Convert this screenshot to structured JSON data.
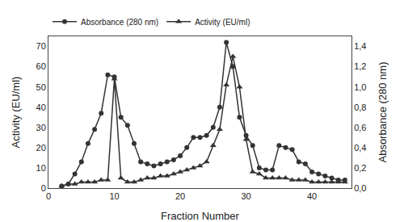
{
  "chart_data": {
    "type": "line",
    "xlabel": "Fraction Number",
    "ylabel": "Activity (EU/ml)",
    "y2label": "Absorbance (280 nm)",
    "x": [
      2,
      3,
      4,
      5,
      6,
      7,
      8,
      9,
      10,
      11,
      12,
      13,
      14,
      15,
      16,
      17,
      18,
      19,
      20,
      21,
      22,
      23,
      24,
      25,
      26,
      27,
      28,
      29,
      30,
      31,
      32,
      33,
      34,
      35,
      36,
      37,
      38,
      39,
      40,
      41,
      42,
      43,
      44,
      45
    ],
    "series": [
      {
        "name": "Activity (EU/ml)",
        "color": "#333333",
        "marker": "triangle",
        "line_style": "solid",
        "values": [
          1,
          2,
          2,
          3,
          3,
          3,
          4,
          4,
          54,
          5,
          3,
          3,
          4,
          5,
          5,
          6,
          6,
          7,
          8,
          9,
          10,
          11,
          13,
          21,
          29,
          51,
          65,
          50,
          24,
          8,
          7,
          5,
          5,
          5,
          5,
          4,
          4,
          4,
          3,
          3,
          3,
          3,
          3,
          3
        ]
      },
      {
        "name": "Absorbance (280 nm)",
        "color": "#333333",
        "marker": "circle",
        "line_style": "solid",
        "axis": "y2",
        "values": [
          0.02,
          0.04,
          0.14,
          0.26,
          0.44,
          0.58,
          0.74,
          1.12,
          1.1,
          0.7,
          0.62,
          0.44,
          0.26,
          0.24,
          0.22,
          0.24,
          0.26,
          0.28,
          0.32,
          0.4,
          0.5,
          0.5,
          0.52,
          0.6,
          0.8,
          1.44,
          1.2,
          0.7,
          0.52,
          0.42,
          0.2,
          0.18,
          0.18,
          0.42,
          0.4,
          0.38,
          0.26,
          0.24,
          0.16,
          0.14,
          0.12,
          0.1,
          0.08,
          0.08
        ]
      }
    ],
    "xlim": [
      0,
      46
    ],
    "xticks": [
      0,
      10,
      20,
      30,
      40
    ],
    "ylim": [
      0,
      75
    ],
    "yticks": [
      0,
      10,
      20,
      30,
      40,
      50,
      60,
      70
    ],
    "y2lim": [
      0.0,
      1.5
    ],
    "y2ticks": [
      {
        "value": 0.0,
        "label": "0,0"
      },
      {
        "value": 0.2,
        "label": "0,2"
      },
      {
        "value": 0.4,
        "label": "0,4"
      },
      {
        "value": 0.6,
        "label": "0,6"
      },
      {
        "value": 0.8,
        "label": "0,8"
      },
      {
        "value": 1.0,
        "label": "1,0"
      },
      {
        "value": 1.2,
        "label": "1,2"
      },
      {
        "value": 1.4,
        "label": "1,4"
      }
    ],
    "grid": false,
    "legend": "upper left"
  }
}
